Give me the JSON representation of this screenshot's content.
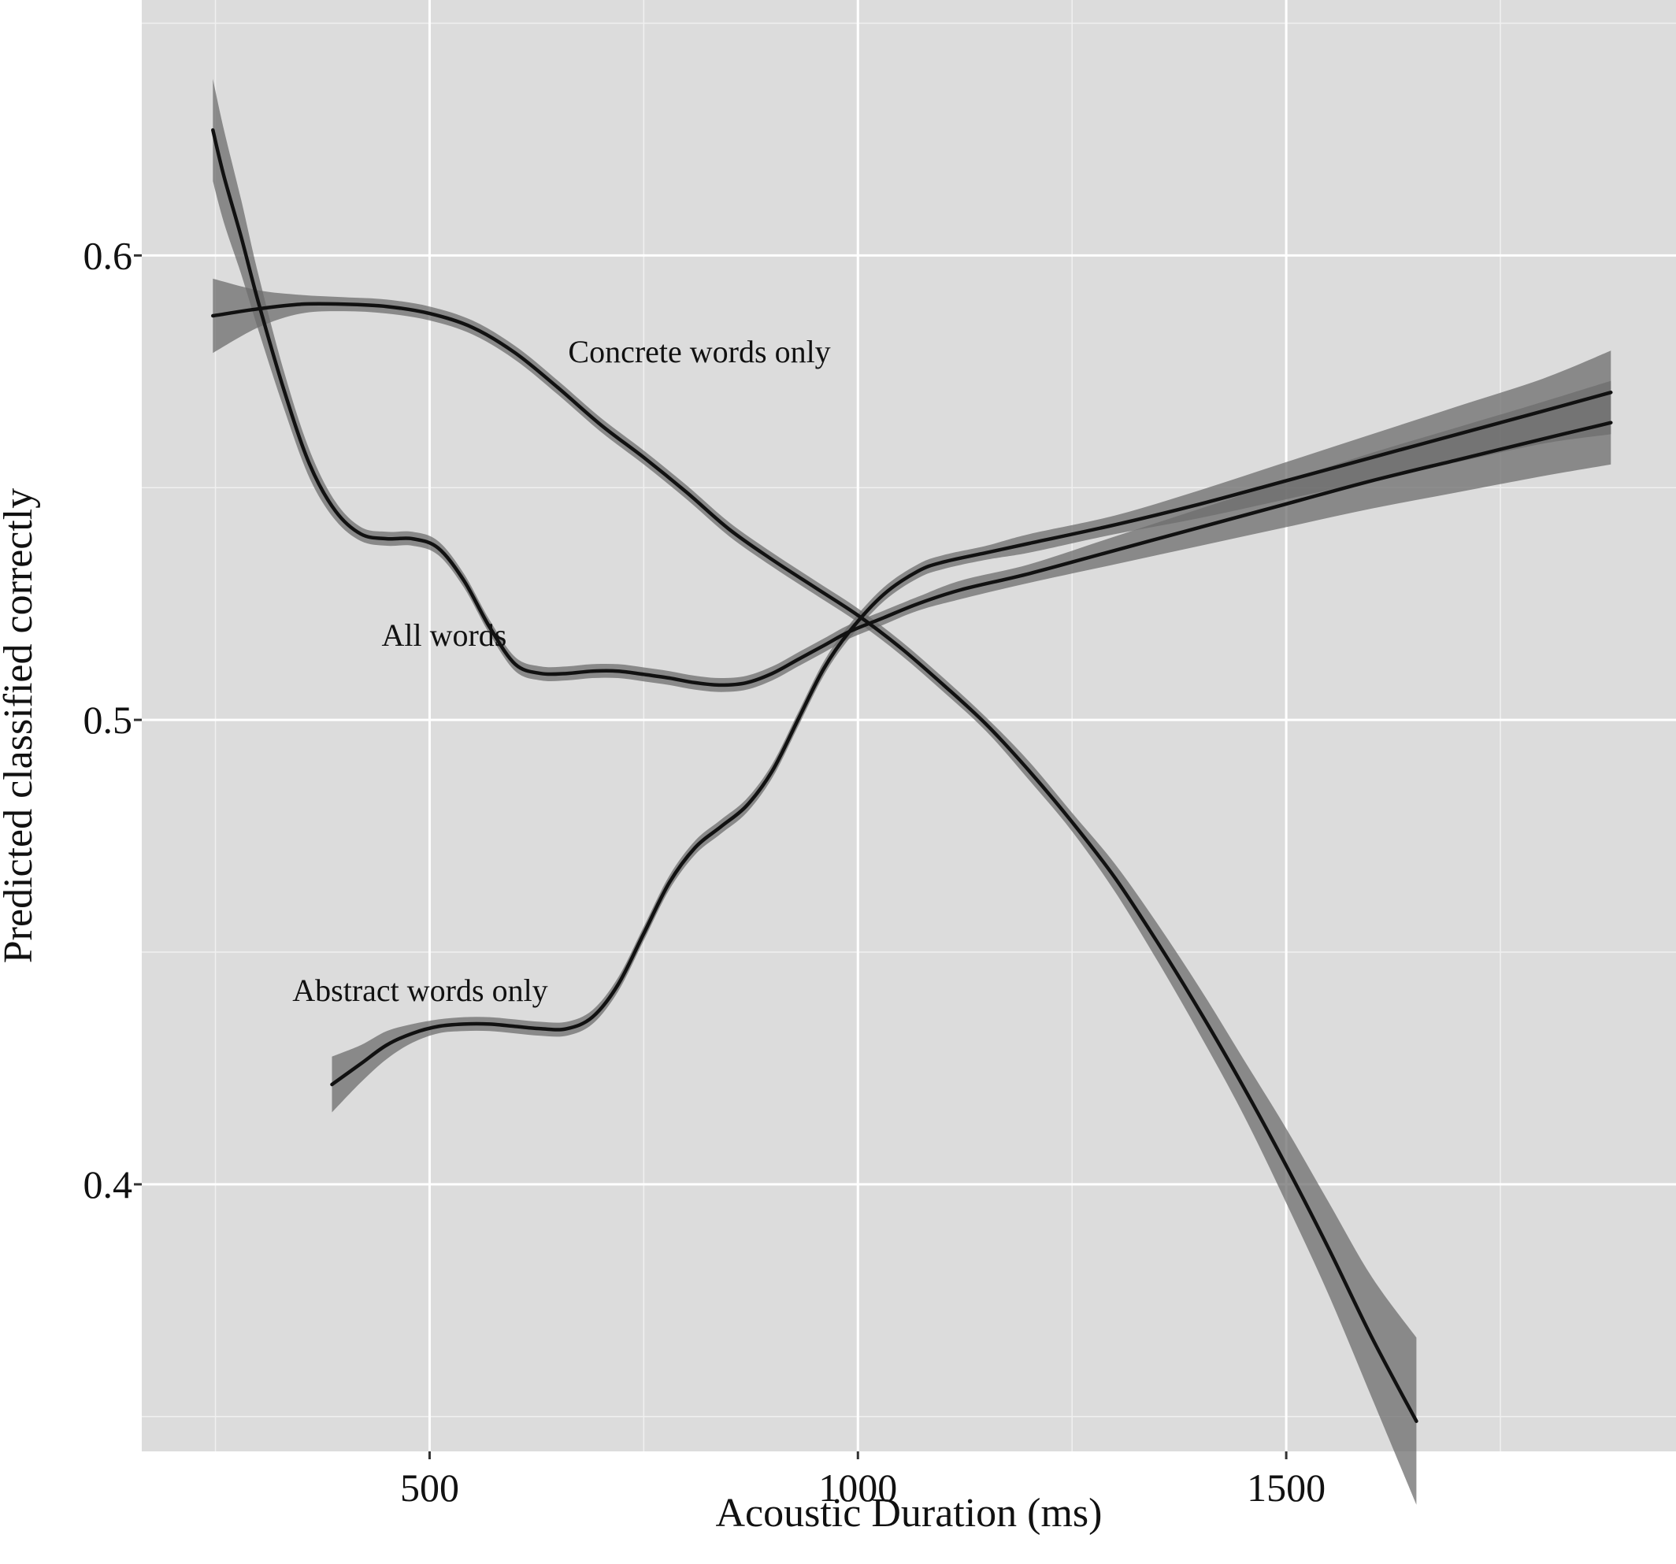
{
  "chart_data": {
    "type": "line",
    "title": "",
    "xlabel": "Acoustic Duration (ms)",
    "ylabel": "Predicted classified correctly",
    "xlim": [
      164,
      1955
    ],
    "ylim": [
      0.3425,
      0.655
    ],
    "x_ticks": [
      500,
      1000,
      1500
    ],
    "x_tick_labels": [
      "500",
      "1000",
      "1500"
    ],
    "x_minor_ticks": [
      250,
      750,
      1250,
      1750
    ],
    "y_ticks": [
      0.4,
      0.5,
      0.6
    ],
    "y_tick_labels": [
      "0.4",
      "0.5",
      "0.6"
    ],
    "y_minor_ticks": [
      0.35,
      0.45,
      0.55,
      0.65
    ],
    "grid": true,
    "legend": "none (direct labels on curves)",
    "colors": {
      "panel": "#dcdcdc",
      "line": "#111111",
      "band": "#6e6e6e"
    },
    "series": [
      {
        "name": "All words",
        "label_at": [
          517,
          0.516
        ],
        "x": [
          247,
          260,
          280,
          300,
          330,
          360,
          390,
          420,
          450,
          480,
          510,
          540,
          570,
          600,
          630,
          660,
          690,
          720,
          750,
          780,
          810,
          840,
          870,
          900,
          930,
          960,
          990,
          1030,
          1070,
          1120,
          1200,
          1300,
          1400,
          1500,
          1600,
          1700,
          1800,
          1879
        ],
        "y": [
          0.627,
          0.617,
          0.604,
          0.59,
          0.571,
          0.555,
          0.545,
          0.54,
          0.539,
          0.539,
          0.537,
          0.53,
          0.52,
          0.512,
          0.51,
          0.51,
          0.5105,
          0.5105,
          0.5098,
          0.509,
          0.508,
          0.5075,
          0.508,
          0.51,
          0.513,
          0.516,
          0.519,
          0.522,
          0.525,
          0.528,
          0.5315,
          0.5365,
          0.5415,
          0.5465,
          0.5515,
          0.556,
          0.5605,
          0.564
        ],
        "band_halfwidth": [
          0.011,
          0.01,
          0.008,
          0.006,
          0.004,
          0.003,
          0.002,
          0.0015,
          0.0015,
          0.0015,
          0.0015,
          0.0015,
          0.0015,
          0.0015,
          0.0015,
          0.0015,
          0.0015,
          0.0015,
          0.0015,
          0.0015,
          0.0015,
          0.0015,
          0.0015,
          0.0015,
          0.0015,
          0.0015,
          0.0015,
          0.0015,
          0.0015,
          0.002,
          0.002,
          0.003,
          0.004,
          0.005,
          0.006,
          0.007,
          0.008,
          0.009
        ]
      },
      {
        "name": "Concrete words only",
        "label_at": [
          815,
          0.577
        ],
        "x": [
          247,
          300,
          350,
          400,
          450,
          500,
          550,
          600,
          650,
          700,
          750,
          800,
          850,
          900,
          950,
          1000,
          1050,
          1100,
          1150,
          1200,
          1250,
          1300,
          1350,
          1400,
          1450,
          1500,
          1550,
          1600,
          1652
        ],
        "y": [
          0.587,
          0.5885,
          0.5895,
          0.5895,
          0.589,
          0.5875,
          0.5845,
          0.579,
          0.5715,
          0.5635,
          0.5565,
          0.549,
          0.541,
          0.5345,
          0.5285,
          0.5225,
          0.5155,
          0.5075,
          0.499,
          0.489,
          0.478,
          0.466,
          0.452,
          0.437,
          0.421,
          0.404,
          0.386,
          0.367,
          0.349
        ],
        "band_halfwidth": [
          0.008,
          0.004,
          0.002,
          0.0015,
          0.0015,
          0.0015,
          0.0015,
          0.0015,
          0.0015,
          0.0015,
          0.0015,
          0.0015,
          0.0015,
          0.0015,
          0.0015,
          0.0015,
          0.0015,
          0.0015,
          0.0015,
          0.002,
          0.002,
          0.003,
          0.004,
          0.005,
          0.006,
          0.008,
          0.01,
          0.013,
          0.018
        ]
      },
      {
        "name": "Abstract words only",
        "label_at": [
          489,
          0.4395
        ],
        "x": [
          386,
          420,
          450,
          480,
          510,
          540,
          570,
          600,
          630,
          660,
          690,
          720,
          750,
          780,
          810,
          840,
          870,
          900,
          930,
          960,
          990,
          1030,
          1070,
          1100,
          1150,
          1200,
          1300,
          1400,
          1500,
          1600,
          1700,
          1800,
          1879
        ],
        "y": [
          0.4215,
          0.426,
          0.43,
          0.4325,
          0.434,
          0.4345,
          0.4345,
          0.434,
          0.4335,
          0.4335,
          0.436,
          0.443,
          0.454,
          0.465,
          0.4725,
          0.477,
          0.4815,
          0.489,
          0.5,
          0.511,
          0.519,
          0.527,
          0.532,
          0.534,
          0.536,
          0.538,
          0.542,
          0.5465,
          0.5515,
          0.5565,
          0.5615,
          0.5665,
          0.5705
        ],
        "band_halfwidth": [
          0.006,
          0.004,
          0.003,
          0.002,
          0.0015,
          0.0015,
          0.0015,
          0.0015,
          0.0015,
          0.0015,
          0.0015,
          0.0015,
          0.0015,
          0.0015,
          0.0015,
          0.0015,
          0.0015,
          0.0015,
          0.0015,
          0.0015,
          0.0015,
          0.0015,
          0.0015,
          0.0015,
          0.0015,
          0.002,
          0.002,
          0.003,
          0.004,
          0.005,
          0.006,
          0.007,
          0.009
        ]
      }
    ]
  }
}
